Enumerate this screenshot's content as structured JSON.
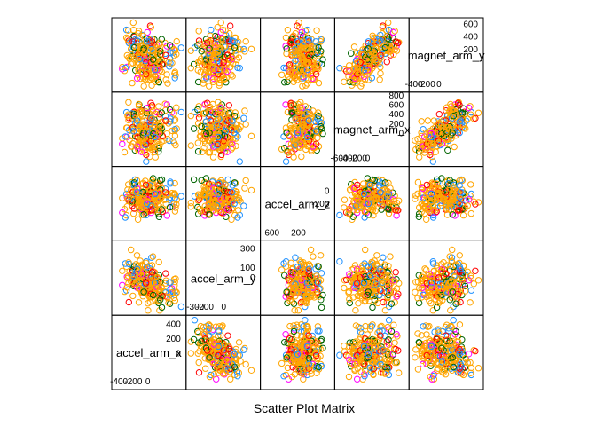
{
  "chart_data": {
    "type": "scatter",
    "title": "",
    "xlabel": "Scatter Plot Matrix",
    "variables": [
      {
        "name": "accel_arm_x",
        "lim": [
          -450,
          480
        ],
        "ticks_a": [
          {
            "v": -400,
            "t": "-400"
          },
          {
            "v": -200,
            "t": "-200"
          },
          {
            "v": 0,
            "t": "0"
          }
        ],
        "ticks_b": [
          {
            "v": 0,
            "t": "0"
          },
          {
            "v": 200,
            "t": "200"
          },
          {
            "v": 400,
            "t": "400"
          }
        ],
        "tick_edge": "left",
        "label_lines": [
          "accel_arm_x"
        ]
      },
      {
        "name": "accel_arm_y",
        "lim": [
          -360,
          350
        ],
        "ticks_a": [
          {
            "v": -300,
            "t": "-300"
          },
          {
            "v": -200,
            "t": "-200"
          },
          {
            "v": 0,
            "t": "0"
          }
        ],
        "ticks_b": [
          {
            "v": 0,
            "t": "0"
          },
          {
            "v": 100,
            "t": "100"
          },
          {
            "v": 300,
            "t": "300"
          }
        ],
        "tick_edge": "top",
        "label_lines": [
          "accel_arm_y"
        ]
      },
      {
        "name": "accel_arm_z",
        "lim": [
          -700,
          320
        ],
        "ticks_a": [
          {
            "v": -600,
            "t": "-600"
          },
          {
            "v": -200,
            "t": "-200"
          }
        ],
        "ticks_b": [
          {
            "v": -200,
            "t": "-200"
          },
          {
            "v": 0,
            "t": "0"
          }
        ],
        "tick_edge": "right",
        "label_lines": [
          "accel_arm_z"
        ]
      },
      {
        "name": "magnet_arm_x",
        "lim": [
          -620,
          800
        ],
        "ticks_a": [
          {
            "v": -600,
            "t": "-600"
          },
          {
            "v": -400,
            "t": "-400"
          },
          {
            "v": -200,
            "t": "-200"
          },
          {
            "v": 0,
            "t": "0"
          }
        ],
        "ticks_b": [
          {
            "v": 0,
            "t": "0"
          },
          {
            "v": 200,
            "t": "200"
          },
          {
            "v": 400,
            "t": "400"
          },
          {
            "v": 600,
            "t": "600"
          },
          {
            "v": 800,
            "t": "800"
          }
        ],
        "tick_edge": "right",
        "label_lines": [
          "magnet_arm_x"
        ]
      },
      {
        "name": "magnet_arm_y",
        "lim": [
          -420,
          650
        ],
        "ticks_a": [
          {
            "v": -400,
            "t": "-400"
          },
          {
            "v": -200,
            "t": "-200"
          },
          {
            "v": 0,
            "t": "0"
          }
        ],
        "ticks_b": [
          {
            "v": 200,
            "t": "200"
          },
          {
            "v": 400,
            "t": "400"
          },
          {
            "v": 600,
            "t": "600"
          }
        ],
        "tick_edge": "right",
        "label_lines": [
          "magnet_arm_y"
        ]
      }
    ],
    "groups": [
      {
        "color": "#FF0000"
      },
      {
        "color": "#006400"
      },
      {
        "color": "#1E90FF"
      },
      {
        "color": "#FF00FF"
      },
      {
        "color": "#FFA500"
      }
    ],
    "grid": false,
    "legend": "none",
    "marker": "open-circle"
  }
}
